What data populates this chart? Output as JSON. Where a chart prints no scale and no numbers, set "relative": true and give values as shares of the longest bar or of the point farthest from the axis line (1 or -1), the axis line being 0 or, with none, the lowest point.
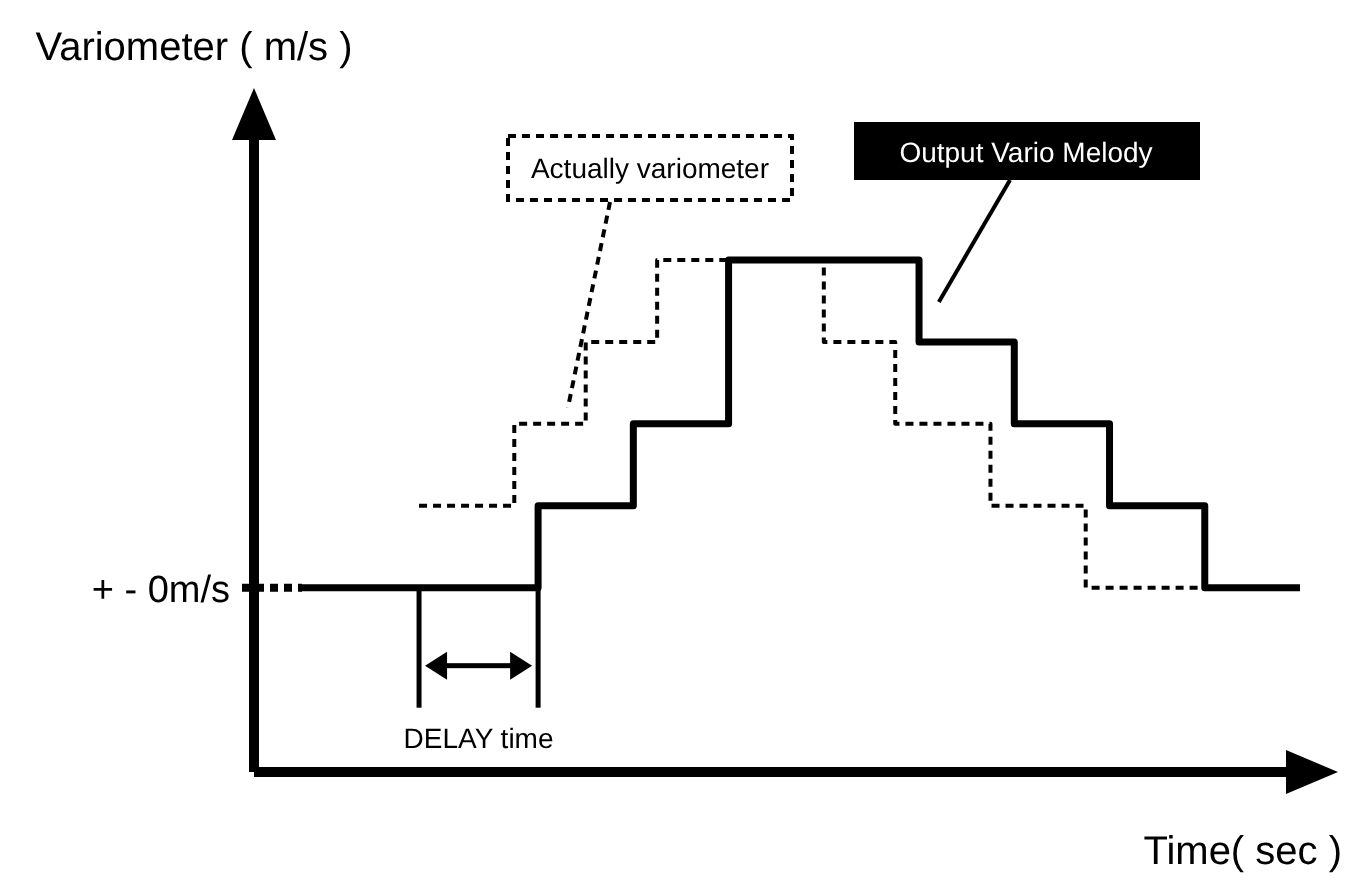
{
  "chart_data": {
    "type": "step",
    "relative": true,
    "xlabel": "Time( sec )",
    "ylabel": "Variometer ( m/s )",
    "legend": false,
    "categories": [
      null,
      null,
      null,
      null,
      null,
      null,
      null,
      null,
      null,
      null,
      null,
      null,
      null,
      null,
      null,
      null,
      null,
      null,
      null,
      null,
      null,
      null,
      null,
      null,
      null,
      null,
      null,
      null,
      null,
      null,
      null,
      null,
      null,
      null,
      null,
      null,
      null,
      null,
      null,
      null,
      null,
      null,
      null
    ],
    "series": [
      {
        "name": "Actually variometer",
        "color": "#000000",
        "line_style": "dashed",
        "values": [
          null,
          null,
          null,
          null,
          null,
          0.52,
          0.52,
          0.52,
          0.52,
          0.68,
          0.68,
          0.68,
          0.84,
          0.84,
          0.84,
          1,
          1,
          1,
          1,
          1,
          1,
          1,
          0.84,
          0.84,
          0.84,
          0.68,
          0.68,
          0.68,
          0.68,
          0.52,
          0.52,
          0.52,
          0.52,
          0.36,
          0.36,
          0.36,
          0.36,
          0.36,
          0.36,
          null,
          null,
          null,
          null
        ]
      },
      {
        "name": "Output Vario Melody",
        "color": "#000000",
        "line_style": "solid",
        "values": [
          0.36,
          0.36,
          0.36,
          0.36,
          0.36,
          0.36,
          0.36,
          0.36,
          0.36,
          0.36,
          0.52,
          0.52,
          0.52,
          0.52,
          0.68,
          0.68,
          0.68,
          0.68,
          1,
          1,
          1,
          1,
          1,
          1,
          1,
          1,
          0.84,
          0.84,
          0.84,
          0.84,
          0.68,
          0.68,
          0.68,
          0.68,
          0.52,
          0.52,
          0.52,
          0.52,
          0.36,
          0.36,
          0.36,
          0.36,
          0.36
        ]
      }
    ],
    "annotations": [
      "+ - 0m/s",
      "DELAY time"
    ]
  }
}
